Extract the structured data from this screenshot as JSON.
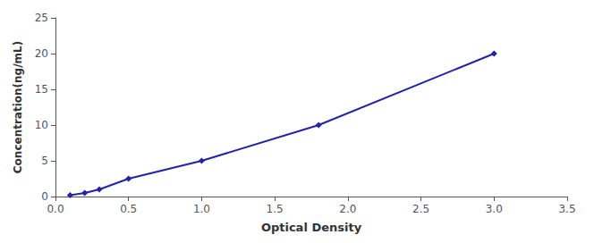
{
  "chart_data": {
    "type": "line",
    "xlabel": "Optical Density",
    "ylabel": "Concentration(ng/mL)",
    "x": [
      0.1,
      0.2,
      0.3,
      0.5,
      1.0,
      1.8,
      3.0
    ],
    "values": [
      0.2,
      0.5,
      1.0,
      2.5,
      5.0,
      10.0,
      20.0
    ],
    "color": "#2222aa",
    "marker": "diamond",
    "xlim": [
      0,
      3.5
    ],
    "ylim": [
      0,
      25
    ],
    "xticks": [
      {
        "value": 0,
        "label": "0.0"
      },
      0.5,
      {
        "value": 1,
        "label": "1.0"
      },
      1.5,
      {
        "value": 2,
        "label": "2.0"
      },
      2.5,
      {
        "value": 3,
        "label": "3.0"
      },
      3.5
    ],
    "yticks": [
      0,
      5,
      10,
      15,
      20,
      25
    ],
    "grid": false
  }
}
